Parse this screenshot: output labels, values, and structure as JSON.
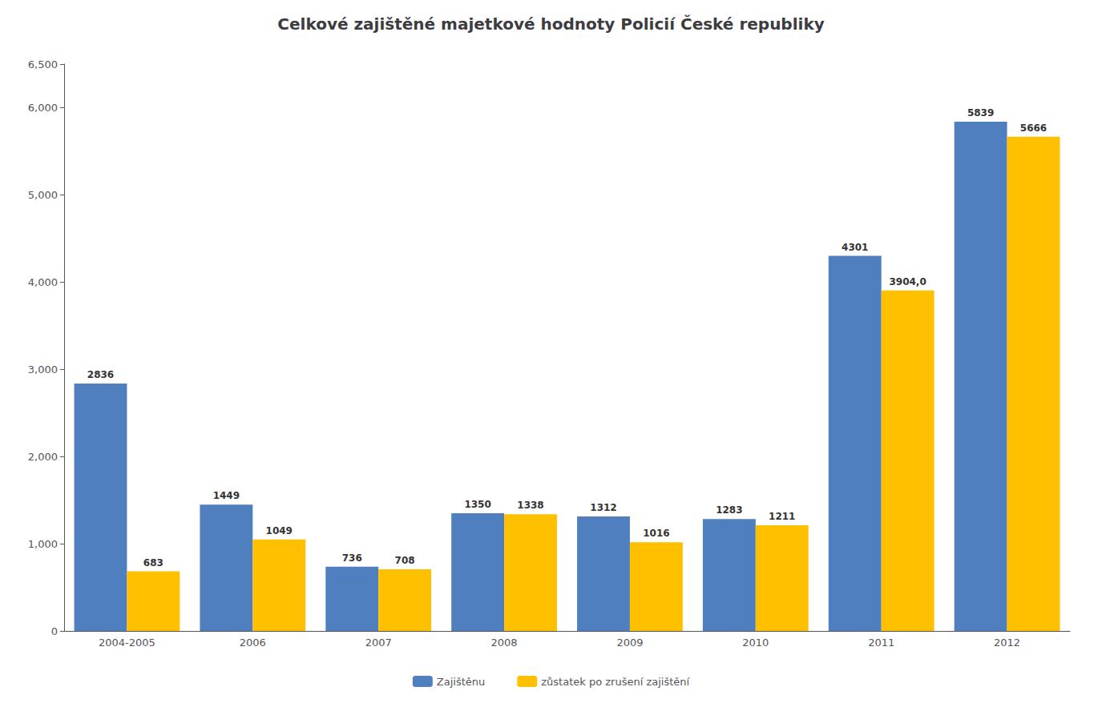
{
  "chart_data": {
    "type": "bar",
    "title": "Celkové zajištěné majetkové hodnoty Policií České republiky",
    "categories": [
      "2004-2005",
      "2006",
      "2007",
      "2008",
      "2009",
      "2010",
      "2011",
      "2012"
    ],
    "series": [
      {
        "name": "Zajištěnu",
        "color": "#4F7FBE",
        "values": [
          2836,
          1449,
          736,
          1350,
          1312,
          1283,
          4301,
          5839
        ]
      },
      {
        "name": "zůstatek po zrušení zajištění",
        "color": "#FFC000",
        "values": [
          683,
          1049,
          708,
          1338,
          1016,
          1211,
          3904.0,
          5666
        ],
        "value_labels": [
          "683",
          "1049",
          "708",
          "1338",
          "1016",
          "1211",
          "3904,0",
          "5666"
        ]
      }
    ],
    "ylim": [
      0,
      6500
    ],
    "yticks": [
      0,
      1000,
      2000,
      3000,
      4000,
      5000,
      6000
    ],
    "grid": false,
    "legend": "bottom",
    "data_labels": true
  }
}
